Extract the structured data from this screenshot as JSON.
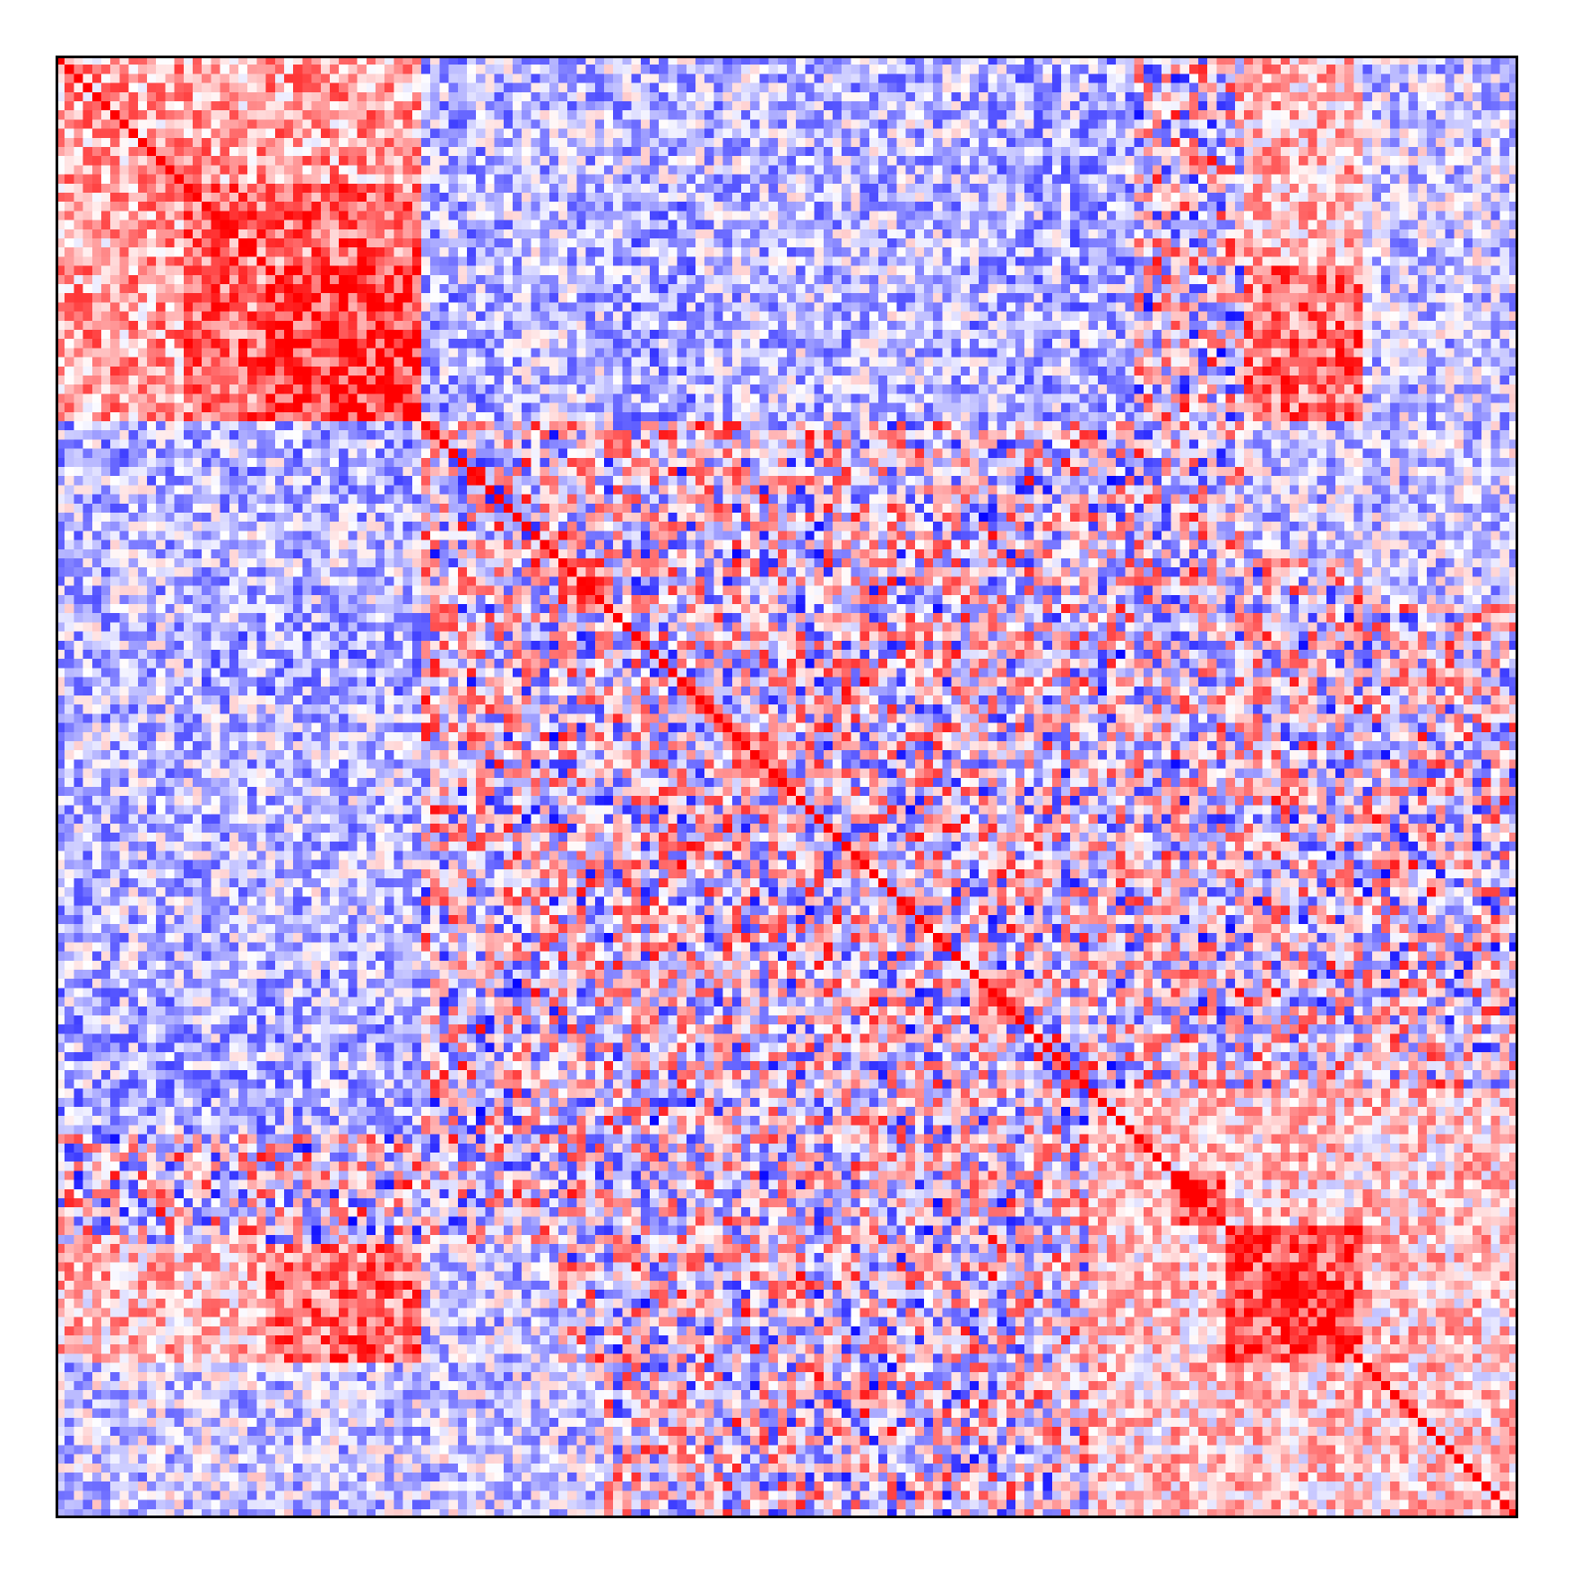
{
  "chart_data": {
    "type": "heatmap",
    "title": "",
    "xlabel": "",
    "ylabel": "",
    "n": 160,
    "symmetric": true,
    "diagonal_value": 1.0,
    "value_range": [
      -1,
      1
    ],
    "colormap": {
      "low": "#0000ff",
      "mid": "#ffffff",
      "high": "#ff0000"
    },
    "axes_ticks": "none",
    "colorbar": "none",
    "blocks": [
      {
        "rows": [
          23,
          40
        ],
        "cols": [
          23,
          40
        ],
        "mean": 0.75
      },
      {
        "rows": [
          14,
          40
        ],
        "cols": [
          14,
          40
        ],
        "mean": 0.55
      },
      {
        "rows": [
          0,
          40
        ],
        "cols": [
          0,
          40
        ],
        "mean": 0.35
      },
      {
        "rows": [
          128,
          143
        ],
        "cols": [
          128,
          143
        ],
        "mean": 0.7
      },
      {
        "rows": [
          122,
          128
        ],
        "cols": [
          122,
          128
        ],
        "mean": 0.75
      },
      {
        "rows": [
          113,
          160
        ],
        "cols": [
          113,
          160
        ],
        "mean": 0.2
      },
      {
        "rows": [
          55,
          60
        ],
        "cols": [
          55,
          60
        ],
        "mean": 0.6
      },
      {
        "rows": [
          75,
          80
        ],
        "cols": [
          75,
          80
        ],
        "mean": 0.45
      },
      {
        "rows": [
          100,
          106
        ],
        "cols": [
          100,
          106
        ],
        "mean": 0.5
      },
      {
        "rows": [
          23,
          40
        ],
        "cols": [
          130,
          143
        ],
        "mean": 0.55
      },
      {
        "rows": [
          0,
          22
        ],
        "cols": [
          130,
          143
        ],
        "mean": 0.25
      },
      {
        "rows": [
          130,
          143
        ],
        "cols": [
          0,
          40
        ],
        "mean": 0.35
      },
      {
        "rows": [
          40,
          47
        ],
        "cols": [
          0,
          40
        ],
        "mean": -0.3
      },
      {
        "rows": [
          62,
          70
        ],
        "cols": [
          14,
          40
        ],
        "mean": -0.35
      },
      {
        "rows": [
          78,
          90
        ],
        "cols": [
          0,
          40
        ],
        "mean": -0.25
      },
      {
        "rows": [
          100,
          118
        ],
        "cols": [
          0,
          40
        ],
        "mean": -0.3
      },
      {
        "rows": [
          0,
          40
        ],
        "cols": [
          40,
          100
        ],
        "mean": -0.25
      },
      {
        "rows": [
          40,
          55
        ],
        "cols": [
          130,
          160
        ],
        "mean": -0.2
      },
      {
        "rows": [
          143,
          160
        ],
        "cols": [
          0,
          60
        ],
        "mean": -0.2
      },
      {
        "rows": [
          143,
          160
        ],
        "cols": [
          130,
          150
        ],
        "mean": -0.3
      }
    ]
  }
}
